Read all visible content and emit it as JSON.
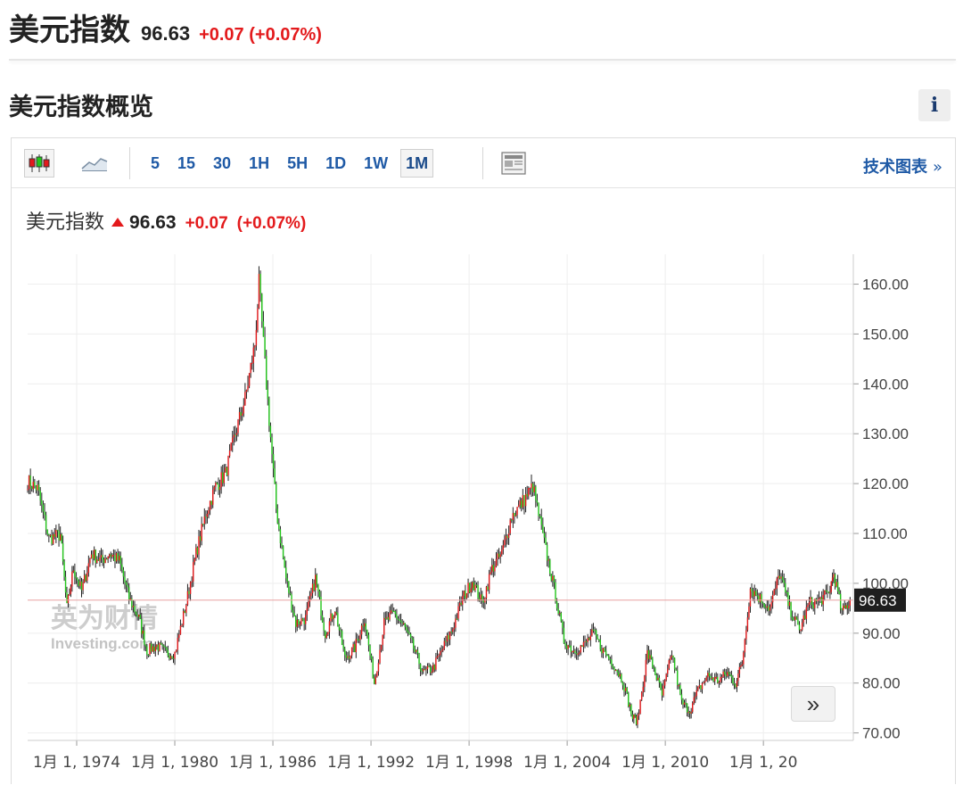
{
  "header": {
    "title": "美元指数",
    "price": "96.63",
    "change": "+0.07 (+0.07%)"
  },
  "section": {
    "title": "美元指数概览",
    "info_icon": "i"
  },
  "toolbar": {
    "icons": [
      "candlestick-icon",
      "area-chart-icon",
      "layout-icon"
    ],
    "timeframes": [
      "5",
      "15",
      "30",
      "1H",
      "5H",
      "1D",
      "1W",
      "1M"
    ],
    "active_timeframe": "1M",
    "tech_link": "技术图表",
    "tech_link_arrow": "»"
  },
  "legend": {
    "name": "美元指数",
    "price": "96.63",
    "change": "+0.07",
    "change_pct": "(+0.07%)"
  },
  "watermark": {
    "cn": "英为财情",
    "en": "Investing.com"
  },
  "scroll_button": "»",
  "colors": {
    "up": "#e31a1c",
    "down": "#22c51a",
    "wick": "#222222",
    "last_price_line": "#e8a0a0",
    "last_price_label_bg": "#1f1f1f"
  },
  "chart_data": {
    "type": "candlestick",
    "title": "美元指数",
    "interval": "1M",
    "last_value": 96.63,
    "last_label": "96.63",
    "ylim": [
      68.5,
      166
    ],
    "yticks": [
      70,
      80,
      90,
      100,
      110,
      120,
      130,
      140,
      150,
      160
    ],
    "ytick_labels": [
      "70.00",
      "80.00",
      "90.00",
      "100.00",
      "110.00",
      "120.00",
      "130.00",
      "140.00",
      "150.00",
      "160.00"
    ],
    "xlim": [
      1971.0,
      2021.5
    ],
    "xticks": [
      1974,
      1980,
      1986,
      1992,
      1998,
      2004,
      2010,
      2016
    ],
    "xtick_labels": [
      "1月 1, 1974",
      "1月 1, 1980",
      "1月 1, 1986",
      "1月 1, 1992",
      "1月 1, 1998",
      "1月 1, 2004",
      "1月 1, 2010",
      "1月 1, 20"
    ],
    "grid": true,
    "series": [
      {
        "x": [
          1971.0,
          1971.6,
          1972.3,
          1973.0,
          1973.4,
          1973.8,
          1974.3,
          1974.9,
          1975.5,
          1976.0,
          1976.6,
          1977.2,
          1977.8,
          1978.3,
          1978.9,
          1979.5,
          1980.0,
          1980.7,
          1981.3,
          1981.9,
          1982.5,
          1983.1,
          1983.7,
          1984.3,
          1984.9,
          1985.15,
          1985.6,
          1986.2,
          1986.8,
          1987.4,
          1988.0,
          1988.6,
          1989.2,
          1989.8,
          1990.4,
          1991.0,
          1991.6,
          1992.2,
          1992.8,
          1993.4,
          1994.0,
          1994.6,
          1995.2,
          1995.8,
          1996.4,
          1997.0,
          1997.6,
          1998.2,
          1998.8,
          1999.4,
          2000.0,
          2000.6,
          2001.2,
          2001.9,
          2002.6,
          2003.2,
          2003.8,
          2004.4,
          2005.0,
          2005.6,
          2006.2,
          2006.8,
          2007.4,
          2008.0,
          2008.3,
          2008.9,
          2009.3,
          2009.8,
          2010.4,
          2011.0,
          2011.5,
          2012.0,
          2012.6,
          2013.2,
          2013.8,
          2014.3,
          2014.7,
          2015.2,
          2015.8,
          2016.4,
          2017.0,
          2017.6,
          2018.2,
          2018.8,
          2019.4,
          2020.0,
          2020.3,
          2020.8,
          2021.3
        ],
        "y": [
          120.5,
          119.0,
          109.0,
          109.8,
          95.0,
          103.0,
          98.5,
          106.0,
          104.5,
          106.0,
          104.5,
          97.0,
          93.0,
          86.5,
          87.5,
          86.0,
          86.0,
          96.0,
          106.0,
          114.0,
          119.5,
          122.0,
          130.0,
          137.0,
          148.0,
          160.0,
          140.0,
          115.0,
          101.0,
          92.0,
          93.0,
          101.0,
          90.0,
          95.0,
          85.0,
          87.0,
          93.0,
          80.0,
          92.0,
          94.0,
          91.5,
          87.0,
          82.0,
          83.0,
          87.0,
          91.0,
          97.0,
          100.5,
          96.0,
          103.0,
          106.0,
          113.5,
          116.0,
          119.5,
          108.0,
          99.0,
          88.5,
          86.5,
          87.5,
          90.0,
          86.5,
          84.0,
          80.5,
          73.0,
          72.5,
          86.0,
          83.0,
          77.5,
          86.0,
          76.0,
          74.5,
          78.5,
          81.5,
          80.5,
          82.0,
          80.0,
          84.0,
          99.0,
          97.0,
          95.0,
          102.0,
          95.0,
          90.5,
          96.0,
          96.5,
          98.0,
          102.0,
          94.0,
          96.63
        ]
      }
    ]
  }
}
